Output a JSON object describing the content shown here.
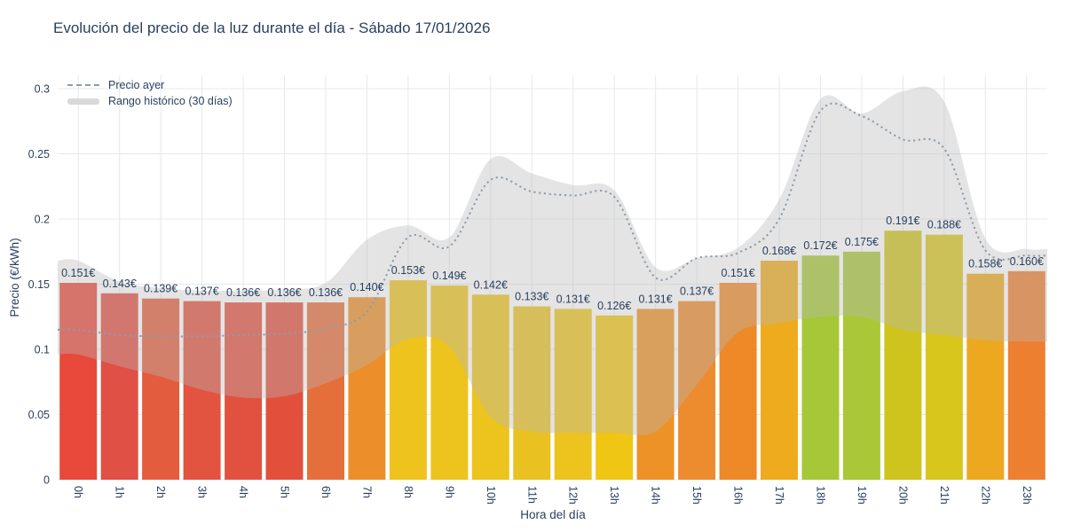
{
  "title": "Evolución del precio de la luz durante el día - Sábado 17/01/2026",
  "chart_data": {
    "type": "bar",
    "title": "Evolución del precio de la luz durante el día - Sábado 17/01/2026",
    "xlabel": "Hora del día",
    "ylabel": "Precio (€/kWh)",
    "ylim": [
      0,
      0.3
    ],
    "grid": true,
    "legend_position": "top-left",
    "y_ticks": [
      0,
      0.05,
      0.1,
      0.15,
      0.2,
      0.25,
      0.3
    ],
    "y_tick_labels": [
      "0",
      "0.05",
      "0.1",
      "0.15",
      "0.2",
      "0.25",
      "0.3"
    ],
    "categories": [
      "0h",
      "1h",
      "2h",
      "3h",
      "4h",
      "5h",
      "6h",
      "7h",
      "8h",
      "9h",
      "10h",
      "11h",
      "12h",
      "13h",
      "14h",
      "15h",
      "16h",
      "17h",
      "18h",
      "19h",
      "20h",
      "21h",
      "22h",
      "23h"
    ],
    "bar_values": [
      0.151,
      0.143,
      0.139,
      0.137,
      0.136,
      0.136,
      0.136,
      0.14,
      0.153,
      0.149,
      0.142,
      0.133,
      0.131,
      0.126,
      0.131,
      0.137,
      0.151,
      0.168,
      0.172,
      0.175,
      0.191,
      0.188,
      0.158,
      0.16
    ],
    "bar_labels": [
      "0.151€",
      "0.143€",
      "0.139€",
      "0.137€",
      "0.136€",
      "0.136€",
      "0.136€",
      "0.140€",
      "0.153€",
      "0.149€",
      "0.142€",
      "0.133€",
      "0.131€",
      "0.126€",
      "0.131€",
      "0.137€",
      "0.151€",
      "0.168€",
      "0.172€",
      "0.175€",
      "0.191€",
      "0.188€",
      "0.158€",
      "0.160€"
    ],
    "bar_colors": [
      "#e8493a",
      "#e05045",
      "#e25c3d",
      "#e25340",
      "#e25140",
      "#e2503c",
      "#e56f3a",
      "#ec8f2b",
      "#eec31d",
      "#edc31e",
      "#edc31e",
      "#e9c221",
      "#edc31e",
      "#f0c614",
      "#ed9226",
      "#ec8c2f",
      "#ed8927",
      "#eeab1e",
      "#a6c838",
      "#aac737",
      "#cfc31e",
      "#d8c61d",
      "#eda81f",
      "#ed7f31"
    ],
    "yesterday_line": {
      "name": "Precio ayer",
      "values": [
        0.115,
        0.111,
        0.11,
        0.11,
        0.111,
        0.112,
        0.116,
        0.129,
        0.186,
        0.179,
        0.23,
        0.221,
        0.218,
        0.217,
        0.155,
        0.17,
        0.174,
        0.2,
        0.283,
        0.279,
        0.261,
        0.254,
        0.176,
        0.172
      ]
    },
    "historical_band": {
      "name": "Rango histórico (30 días)",
      "upper": [
        0.168,
        0.152,
        0.147,
        0.145,
        0.145,
        0.146,
        0.151,
        0.184,
        0.195,
        0.186,
        0.246,
        0.235,
        0.226,
        0.222,
        0.163,
        0.17,
        0.178,
        0.215,
        0.292,
        0.281,
        0.298,
        0.29,
        0.185,
        0.177
      ],
      "lower": [
        0.096,
        0.087,
        0.079,
        0.069,
        0.063,
        0.064,
        0.074,
        0.088,
        0.108,
        0.102,
        0.048,
        0.037,
        0.036,
        0.036,
        0.037,
        0.073,
        0.113,
        0.12,
        0.125,
        0.125,
        0.115,
        0.111,
        0.107,
        0.106
      ]
    }
  },
  "style": {
    "background": "#ffffff",
    "text_color": "#2a3f5f",
    "grid_color": "#e5e8ed",
    "band_color": "#b9b9b9",
    "band_opacity": 0.38,
    "legend_band_swatch": "#d9d9d9",
    "line_color": "#8d9cab"
  }
}
